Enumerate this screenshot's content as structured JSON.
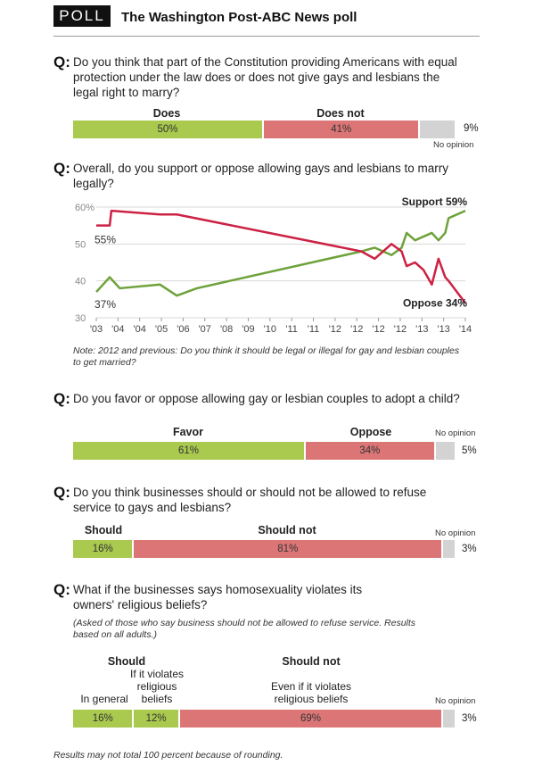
{
  "header": {
    "badge": "POLL",
    "title": "The Washington Post-ABC News poll"
  },
  "q_marker": "Q:",
  "colors": {
    "green": "#a9c94f",
    "red": "#dc7676",
    "gray": "#d3d3d3",
    "line_support": "#6ea23a",
    "line_oppose": "#cc2244"
  },
  "questions": {
    "q1": {
      "text": "Do you think that part of the Constitution providing Americans with equal protection under the law does or does not give gays and lesbians the legal right to marry?",
      "label_a": "Does",
      "label_b": "Does not",
      "val_a": "50%",
      "val_b": "41%",
      "val_c": "9%",
      "no_opinion": "No opinion"
    },
    "q2": {
      "text": "Overall, do you support or oppose allowing gays and lesbians to marry legally?",
      "note": "Note: 2012 and previous: Do you think it should be legal or illegal for gay and lesbian couples to get married?"
    },
    "q3": {
      "text": "Do you favor or oppose allowing gay or lesbian couples to adopt a child?",
      "label_a": "Favor",
      "label_b": "Oppose",
      "val_a": "61%",
      "val_b": "34%",
      "val_c": "5%",
      "no_opinion": "No opinion"
    },
    "q4": {
      "text": "Do you think businesses should or should not be allowed to refuse service to gays and lesbians?",
      "label_a": "Should",
      "label_b": "Should not",
      "val_a": "16%",
      "val_b": "81%",
      "val_c": "3%",
      "no_opinion": "No opinion"
    },
    "q5": {
      "text": "What if the businesses says homosexuality violates its owners' religious beliefs?",
      "note": "(Asked of those who say business should not be allowed to refuse service. Results based on all adults.)",
      "label_a": "Should",
      "label_b": "Should not",
      "sub_a1": "In general",
      "sub_a2": "If it violates religious beliefs",
      "sub_b": "Even if it violates religious beliefs",
      "val_a1": "16%",
      "val_a2": "12%",
      "val_b": "69%",
      "val_c": "3%",
      "no_opinion": "No opinion"
    }
  },
  "footer": "Results may not total 100 percent because of rounding.",
  "chart_data": [
    {
      "type": "bar",
      "id": "q1",
      "categories": [
        "Does",
        "Does not",
        "No opinion"
      ],
      "values": [
        50,
        41,
        9
      ]
    },
    {
      "type": "line",
      "id": "q2",
      "x_tick_labels": [
        "'03",
        "'04",
        "'04",
        "'05",
        "'06",
        "'07",
        "'08",
        "'09",
        "'10",
        "'11",
        "'11",
        "'12",
        "'12",
        "'12",
        "'12",
        "'13",
        "'13",
        "'14"
      ],
      "ylim": [
        30,
        60
      ],
      "y_ticks": [
        "30",
        "40",
        "50",
        "60%"
      ],
      "series": [
        {
          "name": "Support",
          "end_label": "Support 59%",
          "start_label": "37%",
          "x": [
            2003.0,
            2003.4,
            2003.7,
            2004.9,
            2005.4,
            2006.0,
            2010.9,
            2011.3,
            2011.8,
            2012.1,
            2012.25,
            2012.5,
            2012.75,
            2013.0,
            2013.2,
            2013.4,
            2013.5,
            2014.0
          ],
          "values": [
            37,
            41,
            38,
            39,
            36,
            38,
            48,
            49,
            47,
            49,
            53,
            51,
            52,
            53,
            51,
            53,
            57,
            59
          ]
        },
        {
          "name": "Oppose",
          "end_label": "Oppose 34%",
          "start_label": "55%",
          "x": [
            2003.0,
            2003.4,
            2003.45,
            2004.9,
            2005.4,
            2010.9,
            2011.3,
            2011.8,
            2012.1,
            2012.25,
            2012.5,
            2012.75,
            2013.0,
            2013.2,
            2013.4,
            2013.5,
            2014.0
          ],
          "values": [
            55,
            55,
            59,
            58,
            58,
            48,
            46,
            50,
            48,
            44,
            45,
            43,
            39,
            46,
            41,
            40,
            34
          ]
        }
      ]
    },
    {
      "type": "bar",
      "id": "q3",
      "categories": [
        "Favor",
        "Oppose",
        "No opinion"
      ],
      "values": [
        61,
        34,
        5
      ]
    },
    {
      "type": "bar",
      "id": "q4",
      "categories": [
        "Should",
        "Should not",
        "No opinion"
      ],
      "values": [
        16,
        81,
        3
      ]
    },
    {
      "type": "bar",
      "id": "q5",
      "categories": [
        "In general",
        "If it violates religious beliefs",
        "Even if it violates religious beliefs",
        "No opinion"
      ],
      "values": [
        16,
        12,
        69,
        3
      ]
    }
  ]
}
